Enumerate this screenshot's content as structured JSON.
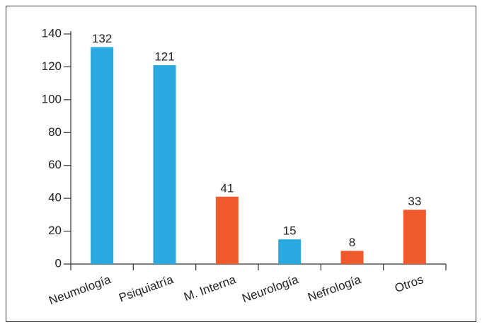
{
  "chart_data": {
    "type": "bar",
    "categories": [
      "Neumología",
      "Psiquiatría",
      "M. Interna",
      "Neurología",
      "Nefrología",
      "Otros"
    ],
    "values": [
      132,
      121,
      41,
      15,
      8,
      33
    ],
    "colors": [
      "#29a9e0",
      "#29a9e0",
      "#f0592b",
      "#29a9e0",
      "#f0592b",
      "#f0592b"
    ],
    "ylim": [
      0,
      140
    ],
    "yticks": [
      0,
      20,
      40,
      60,
      80,
      100,
      120,
      140
    ],
    "grid": false
  }
}
